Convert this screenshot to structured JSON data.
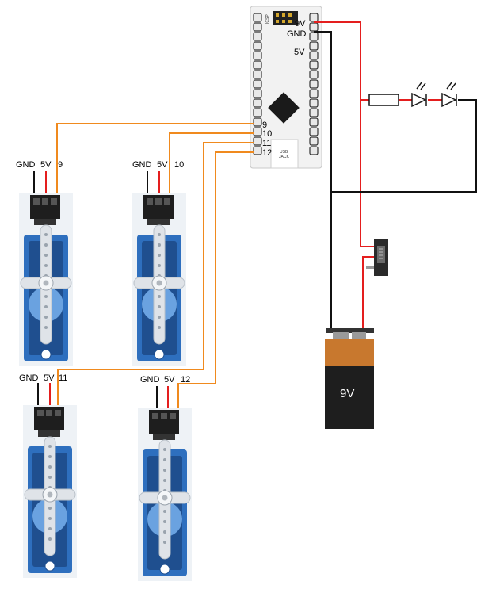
{
  "board": {
    "pin_labels": [
      "9V",
      "GND",
      "5V"
    ],
    "signal_pins": [
      "9",
      "10",
      "11",
      "12"
    ],
    "icsp_label": "ICSP",
    "usb_line1": "USB",
    "usb_line2": "JACK"
  },
  "servos": [
    {
      "gnd": "GND",
      "v": "5V",
      "pin": "9"
    },
    {
      "gnd": "GND",
      "v": "5V",
      "pin": "10"
    },
    {
      "gnd": "GND",
      "v": "5V",
      "pin": "11"
    },
    {
      "gnd": "GND",
      "v": "5V",
      "pin": "12"
    }
  ],
  "battery": {
    "label": "9V"
  },
  "colors": {
    "signal_wire": "#f08a1e",
    "power_wire": "#e41e1e",
    "ground_wire": "#111111",
    "servo_body": "#2e6fbe",
    "servo_dark": "#1f4f8f",
    "battery_orange": "#c8782e",
    "battery_black": "#1e1e1e",
    "board": "#f0f0f0"
  },
  "icons": [
    "arduino-nano-board",
    "servo-motor",
    "9v-battery",
    "slide-switch",
    "resistor",
    "led"
  ]
}
